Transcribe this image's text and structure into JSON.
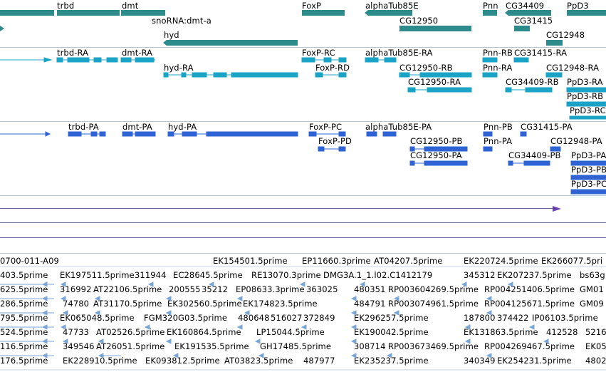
{
  "genes": [
    {
      "label": "trbd"
    },
    {
      "label": "dmt"
    },
    {
      "label": "snoRNA:dmt-a"
    },
    {
      "label": "hyd"
    },
    {
      "label": "FoxP"
    },
    {
      "label": "alphaTub85E"
    },
    {
      "label": "CG12950"
    },
    {
      "label": "Pnn"
    },
    {
      "label": "CG34409"
    },
    {
      "label": "CG31415"
    },
    {
      "label": "PpD3"
    },
    {
      "label": "CG12948"
    }
  ],
  "rna": [
    {
      "label": "trbd-RA"
    },
    {
      "label": "dmt-RA"
    },
    {
      "label": "hyd-RA"
    },
    {
      "label": "FoxP-RC"
    },
    {
      "label": "FoxP-RD"
    },
    {
      "label": "alphaTub85E-RA"
    },
    {
      "label": "CG12950-RB"
    },
    {
      "label": "CG12950-RA"
    },
    {
      "label": "Pnn-RB"
    },
    {
      "label": "CG31415-RA"
    },
    {
      "label": "Pnn-RA"
    },
    {
      "label": "CG12948-RA"
    },
    {
      "label": "CG34409-RB"
    },
    {
      "label": "PpD3-RA"
    },
    {
      "label": "PpD3-RB"
    },
    {
      "label": "PpD3-RC"
    }
  ],
  "proteins": [
    {
      "label": "trbd-PA"
    },
    {
      "label": "dmt-PA"
    },
    {
      "label": "hyd-PA"
    },
    {
      "label": "FoxP-PC"
    },
    {
      "label": "FoxP-PD"
    },
    {
      "label": "alphaTub85E-PA"
    },
    {
      "label": "CG12950-PB"
    },
    {
      "label": "CG12950-PA"
    },
    {
      "label": "Pnn-PB"
    },
    {
      "label": "CG31415-PA"
    },
    {
      "label": "Pnn-PA"
    },
    {
      "label": "CG12948-PA"
    },
    {
      "label": "CG34409-PB"
    },
    {
      "label": "PpD3-PA"
    },
    {
      "label": "PpD3-PB"
    },
    {
      "label": "PpD3-PC"
    }
  ],
  "ests": {
    "row0": [
      "0700-011-A09",
      "EK154501.5prime",
      "EP11660.3prime",
      "AT04207.5prime",
      "EK220724.5prime",
      "EK266077.5pri"
    ],
    "row1": [
      "403.5prime",
      "EK197511.5prime",
      "311944",
      "EC28645.5prime",
      "RE13070.3prime",
      "DMG3A.1_1.l02.C1412179",
      "345312",
      "EK207237.5prime",
      "bs63g"
    ],
    "row2": [
      "625.5prime",
      "316992",
      "AT22106.5prime",
      "200555",
      "35212",
      "EP08633.3prime",
      "363025",
      "480351",
      "RP003604269.5prime",
      "RP004251406.5prime",
      "GM01"
    ],
    "row3": [
      "286.5prime",
      "74780",
      "AT31170.5prime",
      "EK302560.5prime",
      "EK174823.5prime",
      "484791",
      "RP003074961.5prime",
      "RP004125671.5prime",
      "GM09"
    ],
    "row4": [
      "795.5prime",
      "EK065048.5prime",
      "FGM320G03.5prime",
      "480648",
      "516027",
      "372849",
      "EK296257.5prime",
      "187800",
      "374422",
      "IP06103.5prime"
    ],
    "row5": [
      "524.5prime",
      "47733",
      "AT02526.5prime",
      "EK160864.5prime",
      "LP15044.5prime",
      "EK190042.5prime",
      "EK131863.5prime",
      "412528",
      "5216"
    ],
    "row6": [
      "116.5prime",
      "349546",
      "AT26051.5prime",
      "EK191535.5prime",
      "GH17485.5prime",
      "308714",
      "RP003673469.5prime",
      "RP004269467.5prime",
      "EK05"
    ],
    "row7": [
      "176.5prime",
      "EK228910.5prime",
      "EK093812.5prime",
      "AT03823.5prime",
      "487977",
      "EK235237.5prime",
      "340349",
      "EK254231.5prime",
      "4802"
    ]
  },
  "colors": {
    "gene": "#2e8b8b",
    "rna": "#1aa3c4",
    "protein": "#2f63d3",
    "est": "#7aa6d6",
    "track_line": "#6b6b9a",
    "marker": "#6a40b0"
  }
}
